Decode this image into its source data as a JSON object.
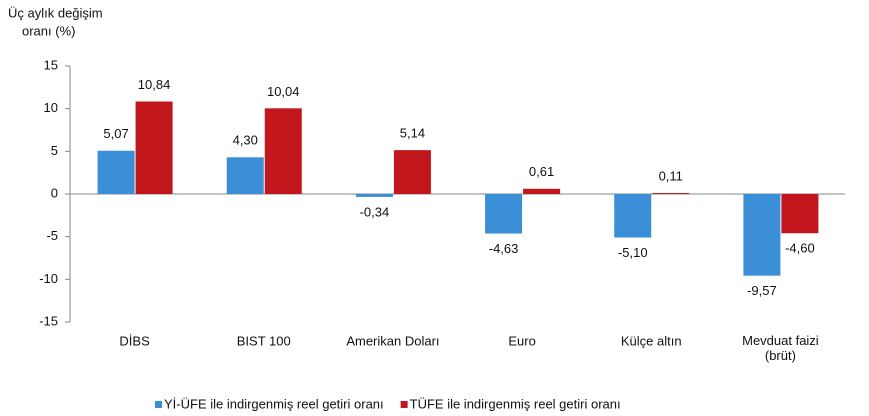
{
  "chart_data": {
    "type": "bar",
    "ylabel": [
      "Üç aylık değişim",
      "oranı (%)"
    ],
    "categories": [
      "DİBS",
      "BIST 100",
      "Amerikan Doları",
      "Euro",
      "Külçe altın",
      "Mevduat faizi\n(brüt)"
    ],
    "series": [
      {
        "name": "Yİ-ÜFE ile indirgenmiş reel getiri oranı",
        "color": "#3a8fd6",
        "values": [
          5.07,
          4.3,
          -0.34,
          -4.63,
          -5.1,
          -9.57
        ],
        "value_labels": [
          "5,07",
          "4,30",
          "-0,34",
          "-4,63",
          "-5,10",
          "-9,57"
        ]
      },
      {
        "name": "TÜFE ile indirgenmiş reel getiri oranı",
        "color": "#c0161c",
        "values": [
          10.84,
          10.04,
          5.14,
          0.61,
          0.11,
          -4.6
        ],
        "value_labels": [
          "10,84",
          "10,04",
          "5,14",
          "0,61",
          "0,11",
          "-4,60"
        ]
      }
    ],
    "ylim": [
      -15,
      15
    ],
    "yticks": [
      -15,
      -10,
      -5,
      0,
      5,
      10,
      15
    ],
    "grid": false,
    "legend": "bottom"
  }
}
